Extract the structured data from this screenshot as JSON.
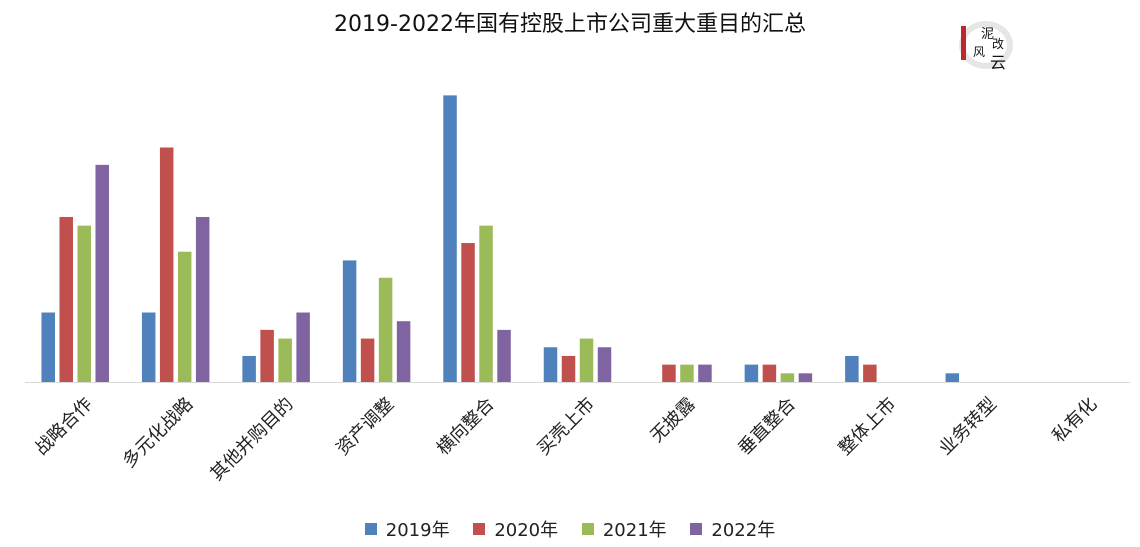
{
  "chart_data": {
    "type": "bar",
    "title": "2019-2022年国有控股上市公司重大重目的汇总",
    "categories": [
      "战略合作",
      "多元化战略",
      "其他并购目的",
      "资产调整",
      "横向整合",
      "买壳上市",
      "无披露",
      "垂直整合",
      "整体上市",
      "业务转型",
      "私有化"
    ],
    "series": [
      {
        "name": "2019年",
        "color": "#4F81BD",
        "values": [
          8,
          8,
          3,
          14,
          33,
          4,
          0,
          2,
          3,
          1,
          0
        ]
      },
      {
        "name": "2020年",
        "color": "#C0504D",
        "values": [
          19,
          27,
          6,
          5,
          16,
          3,
          2,
          2,
          2,
          0,
          0
        ]
      },
      {
        "name": "2021年",
        "color": "#9BBB59",
        "values": [
          18,
          15,
          5,
          12,
          18,
          5,
          2,
          1,
          0,
          0,
          0
        ]
      },
      {
        "name": "2022年",
        "color": "#8064A2",
        "values": [
          25,
          19,
          8,
          7,
          6,
          4,
          2,
          1,
          0,
          0,
          0
        ]
      }
    ],
    "ylim": [
      0,
      35
    ],
    "grid": false,
    "legend_position": "bottom"
  },
  "logo": {
    "line1": "泥",
    "line2": "改",
    "line3": "风",
    "line4": "云"
  }
}
